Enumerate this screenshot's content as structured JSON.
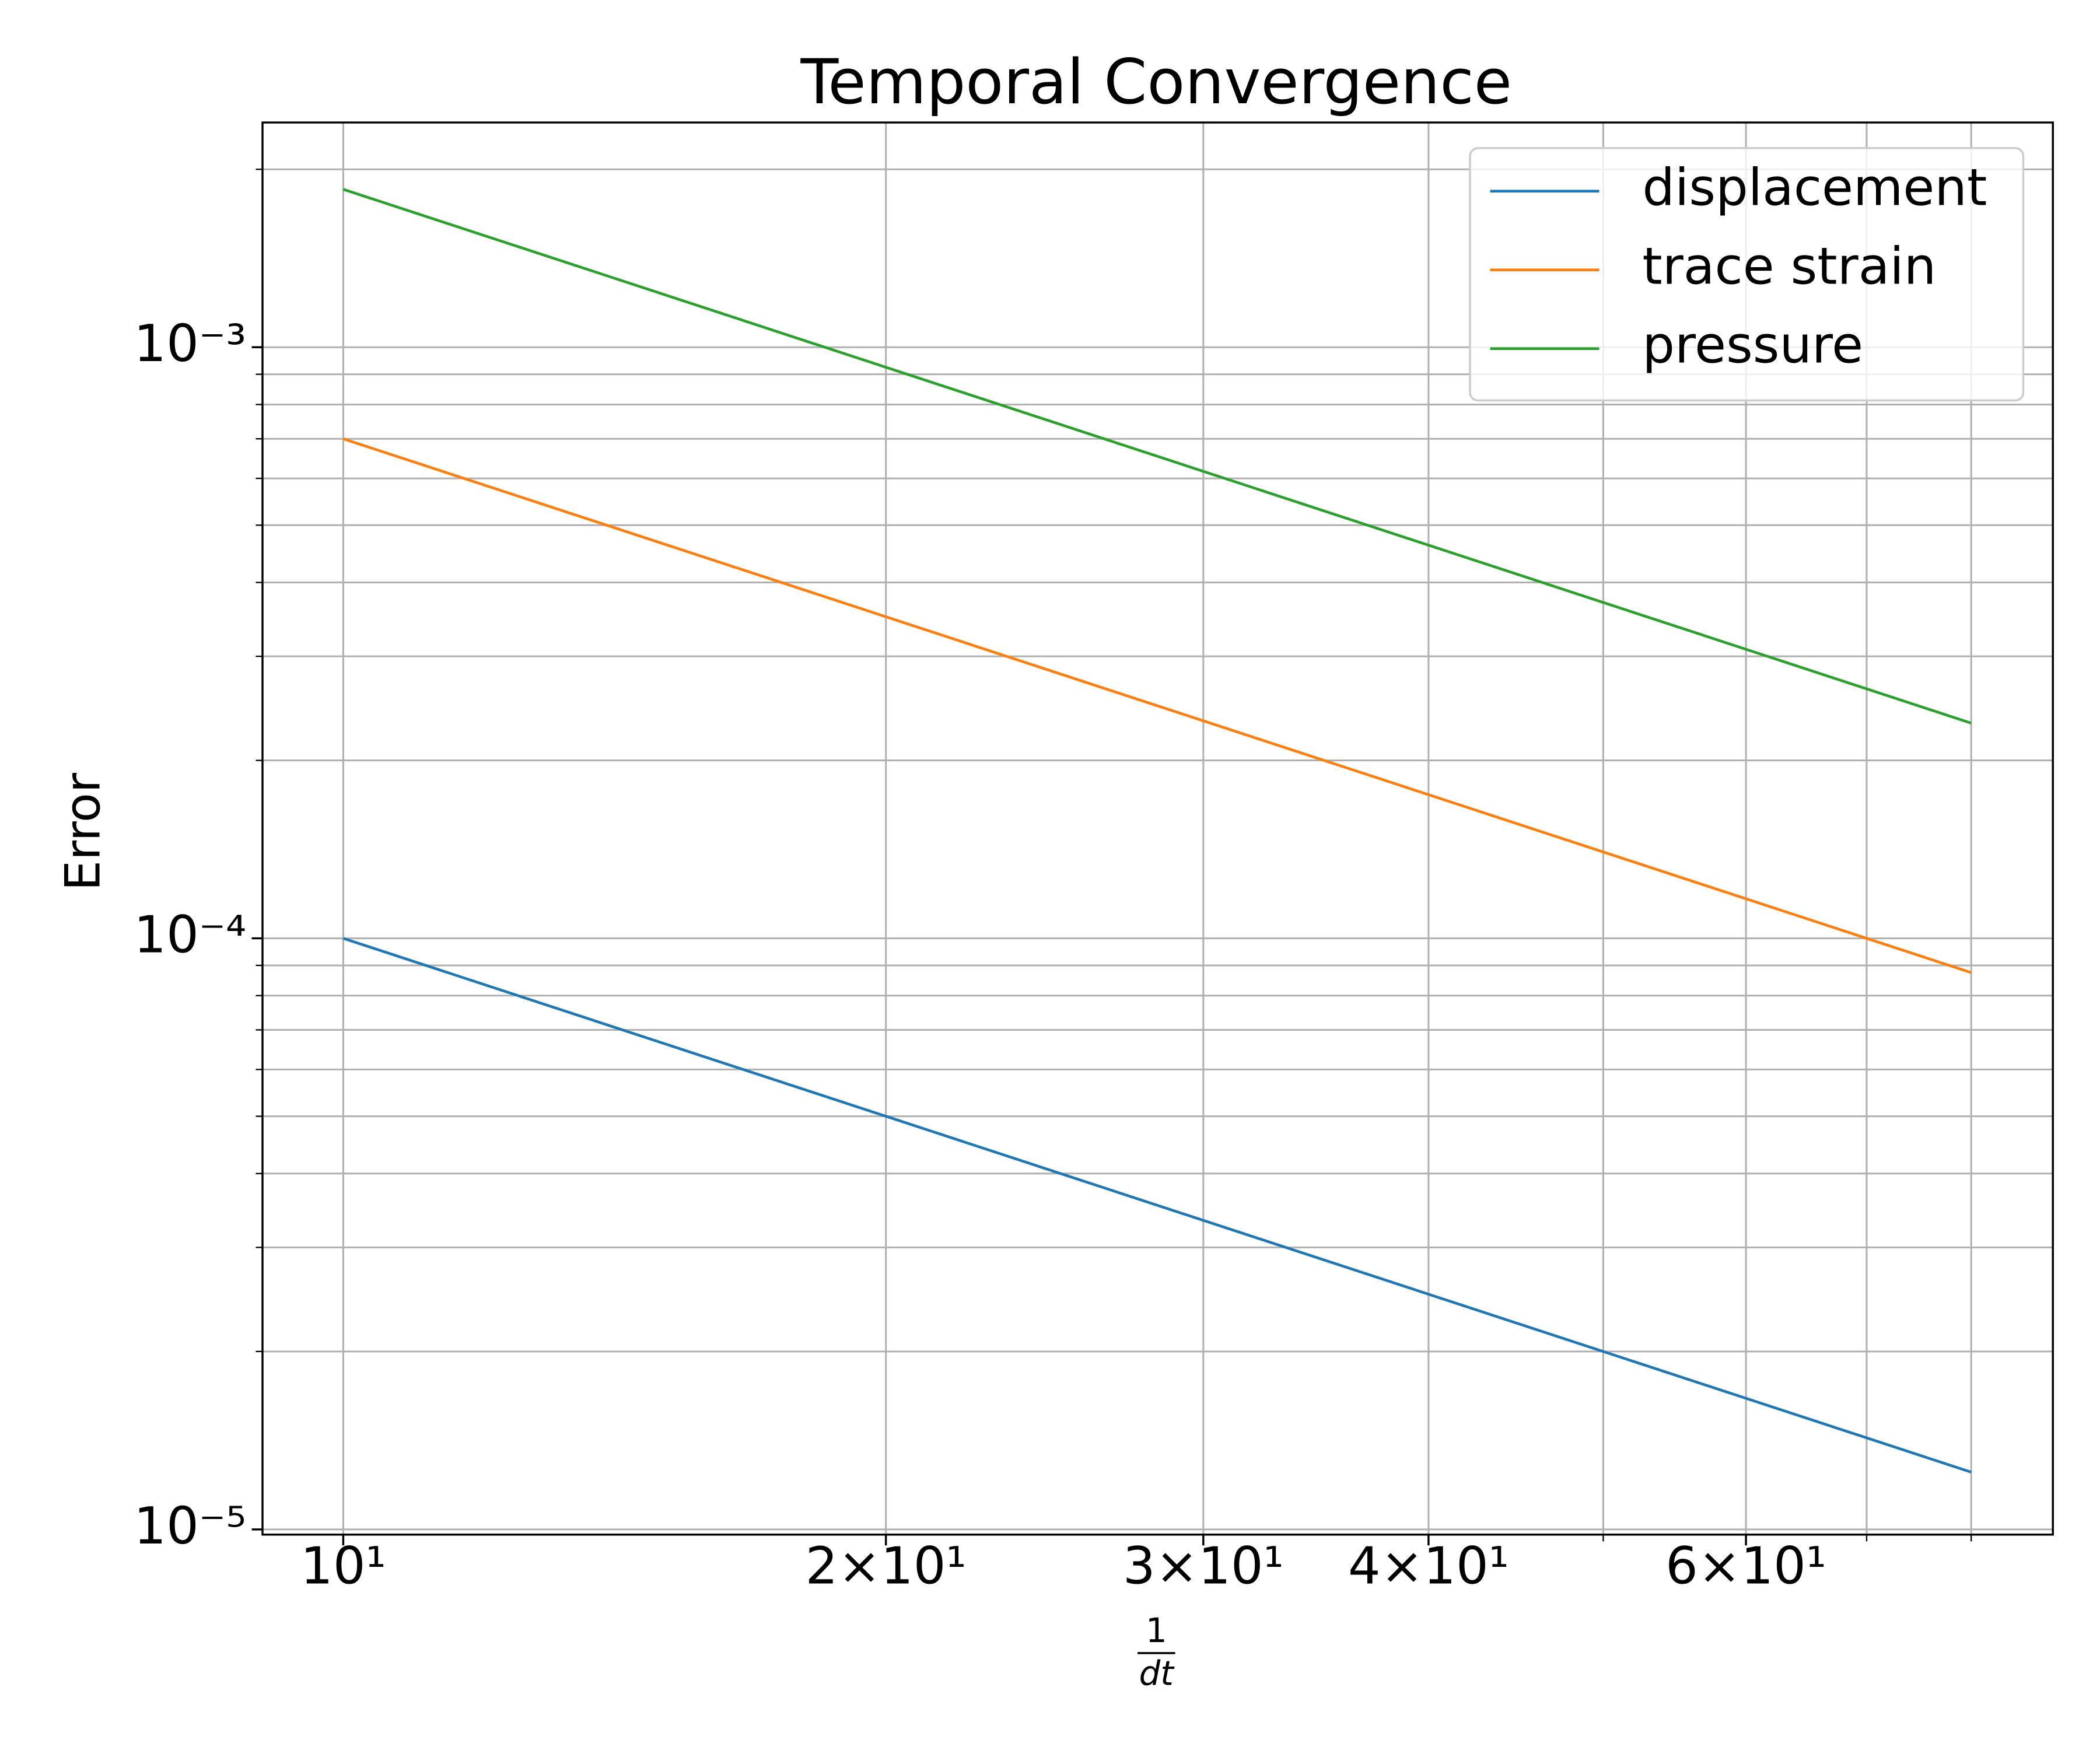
{
  "chart_data": {
    "type": "line",
    "title": "Temporal Convergence",
    "xlabel": {
      "numerator": "1",
      "denominator": "dt"
    },
    "ylabel": "Error",
    "x": [
      10,
      20,
      40,
      80
    ],
    "series": [
      {
        "name": "displacement",
        "color": "#1f77b4",
        "values": [
          0.0001,
          5e-05,
          2.5e-05,
          1.25e-05
        ]
      },
      {
        "name": "trace strain",
        "color": "#ff7f0e",
        "values": [
          0.0007,
          0.00035,
          0.000175,
          8.75e-05
        ]
      },
      {
        "name": "pressure",
        "color": "#2ca02c",
        "values": [
          0.00185,
          0.000925,
          0.0004625,
          0.00023125
        ]
      }
    ],
    "xscale": "log",
    "yscale": "log",
    "xlim": [
      9.02,
      88.8
    ],
    "ylim": [
      9.8e-06,
      0.0024
    ],
    "xticks": [
      {
        "value": 10,
        "label": "10¹"
      },
      {
        "value": 20,
        "label": "2×10¹"
      },
      {
        "value": 30,
        "label": "3×10¹"
      },
      {
        "value": 40,
        "label": "4×10¹"
      },
      {
        "value": 60,
        "label": "6×10¹"
      }
    ],
    "xminor": [
      50,
      70,
      80
    ],
    "yticks": [
      {
        "value": 1e-05,
        "label": "10⁻⁵"
      },
      {
        "value": 0.0001,
        "label": "10⁻⁴"
      },
      {
        "value": 0.001,
        "label": "10⁻³"
      }
    ],
    "yminor": [
      2e-05,
      3e-05,
      4e-05,
      5e-05,
      6e-05,
      7e-05,
      8e-05,
      9e-05,
      0.0002,
      0.0003,
      0.0004,
      0.0005,
      0.0006,
      0.0007,
      0.0008,
      0.0009,
      0.002
    ],
    "grid": true,
    "legend": "upper right"
  }
}
